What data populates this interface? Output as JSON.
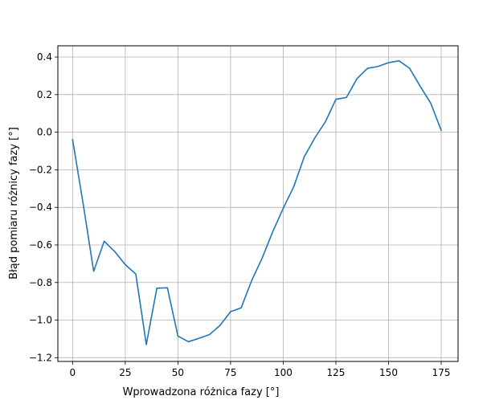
{
  "chart_data": {
    "type": "line",
    "title": "",
    "xlabel": "Wprowadzona różnica fazy [°]",
    "ylabel": "Błąd pomiaru różnicy fazy [°]",
    "xlim": [
      -7,
      183
    ],
    "ylim": [
      -1.22,
      0.46
    ],
    "xticks": [
      0,
      25,
      50,
      75,
      100,
      125,
      150,
      175
    ],
    "xtick_labels": [
      "0",
      "25",
      "50",
      "75",
      "100",
      "125",
      "150",
      "175"
    ],
    "yticks": [
      -1.2,
      -1.0,
      -0.8,
      -0.6,
      -0.4,
      -0.2,
      0.0,
      0.2,
      0.4
    ],
    "ytick_labels": [
      "−1.2",
      "−1.0",
      "−0.8",
      "−0.6",
      "−0.4",
      "−0.2",
      "0.0",
      "0.2",
      "0.4"
    ],
    "grid": true,
    "legend": null,
    "series": [
      {
        "color": "#1f77b4",
        "x": [
          0,
          5,
          10,
          15,
          20,
          25,
          30,
          35,
          40,
          45,
          50,
          55,
          60,
          65,
          70,
          75,
          80,
          85,
          90,
          95,
          100,
          105,
          110,
          115,
          120,
          125,
          130,
          135,
          140,
          145,
          150,
          155,
          160,
          165,
          170,
          175
        ],
        "y": [
          -0.04,
          -0.38,
          -0.74,
          -0.58,
          -0.635,
          -0.705,
          -0.755,
          -1.13,
          -0.83,
          -0.828,
          -1.085,
          -1.115,
          -1.097,
          -1.077,
          -1.028,
          -0.955,
          -0.935,
          -0.79,
          -0.67,
          -0.53,
          -0.405,
          -0.29,
          -0.13,
          -0.03,
          0.055,
          0.175,
          0.185,
          0.285,
          0.34,
          0.35,
          0.37,
          0.38,
          0.34,
          0.245,
          0.155,
          0.01
        ]
      }
    ]
  }
}
